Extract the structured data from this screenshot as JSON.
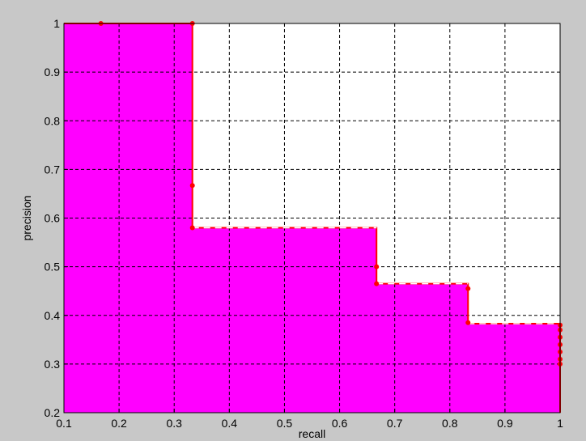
{
  "chart_data": {
    "type": "area",
    "title": "",
    "xlabel": "recall",
    "ylabel": "precision",
    "xlim": [
      0.1,
      1
    ],
    "ylim": [
      0.2,
      1
    ],
    "grid": true,
    "x_ticks": [
      "0.1",
      "0.2",
      "0.3",
      "0.4",
      "0.5",
      "0.6",
      "0.7",
      "0.8",
      "0.9",
      "1"
    ],
    "y_ticks": [
      "0.2",
      "0.3",
      "0.4",
      "0.5",
      "0.6",
      "0.7",
      "0.8",
      "0.9",
      "1"
    ],
    "colors": {
      "fill": "#ff00ff",
      "line": "#ff0000",
      "plot_bg": "#ffffff",
      "figure_bg": "#c8c8c8"
    },
    "series": [
      {
        "x": [
          0.1,
          0.333,
          0.333,
          0.667,
          0.667,
          0.833,
          0.833,
          1.0,
          1.0
        ],
        "y": [
          1.0,
          1.0,
          0.58,
          0.58,
          0.465,
          0.465,
          0.383,
          0.383,
          0.2
        ]
      }
    ],
    "points": {
      "x": [
        0.167,
        0.333,
        0.333,
        0.333,
        0.667,
        0.667,
        0.833,
        0.833,
        1.0,
        1.0,
        1.0,
        1.0,
        1.0,
        1.0,
        1.0
      ],
      "y": [
        1.0,
        1.0,
        0.667,
        0.58,
        0.5,
        0.465,
        0.455,
        0.385,
        0.38,
        0.37,
        0.355,
        0.34,
        0.325,
        0.31,
        0.3
      ]
    }
  }
}
